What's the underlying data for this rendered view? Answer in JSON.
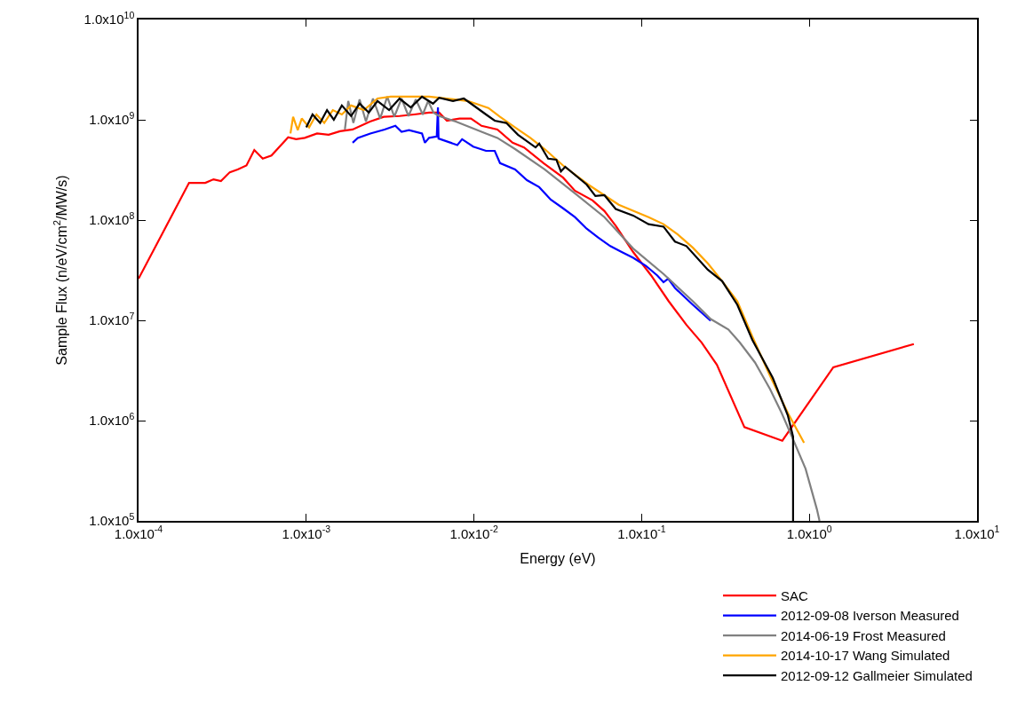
{
  "chart_data": {
    "type": "line",
    "xlabel": "Energy (eV)",
    "ylabel": "Sample Flux (n/eV/cm$^{2}$/MW/s)",
    "log": "xy",
    "legend": "bottom right",
    "marker": "none",
    "line_style": "solid",
    "xlim": [
      0.0001,
      10
    ],
    "ylim": [
      100000,
      10000000000
    ],
    "xticks": [
      {
        "value": 0.0001,
        "label": "1.0x10$^{-4}$"
      },
      {
        "value": 0.001,
        "label": "1.0x10$^{-3}$"
      },
      {
        "value": 0.01,
        "label": "1.0x10$^{-2}$"
      },
      {
        "value": 0.1,
        "label": "1.0x10$^{-1}$"
      },
      {
        "value": 1,
        "label": "1.0x10$^{0}$"
      },
      {
        "value": 10,
        "label": "1.0x10$^{1}$"
      }
    ],
    "yticks": [
      {
        "value": 100000,
        "label": "1.0x10$^{5}$"
      },
      {
        "value": 1000000,
        "label": "1.0x10$^{6}$"
      },
      {
        "value": 10000000,
        "label": "1.0x10$^{7}$"
      },
      {
        "value": 100000000,
        "label": "1.0x10$^{8}$"
      },
      {
        "value": 1000000000,
        "label": "1.0x10$^{9}$"
      },
      {
        "value": 10000000000,
        "label": "1.0x10$^{10}$"
      }
    ],
    "series": [
      {
        "name": "SAC",
        "color": "#ff0000",
        "x": [
          0.0001,
          0.0002,
          0.00025,
          0.00028,
          0.00031,
          0.00035,
          0.00039,
          0.00044,
          0.00049,
          0.00055,
          0.00062,
          0.00078,
          0.00087,
          0.00098,
          0.00116,
          0.00136,
          0.00159,
          0.00189,
          0.0024,
          0.0029,
          0.0036,
          0.0044,
          0.0054,
          0.0062,
          0.0069,
          0.0082,
          0.0096,
          0.0111,
          0.0138,
          0.017,
          0.0199,
          0.026,
          0.034,
          0.04,
          0.051,
          0.06,
          0.07,
          0.089,
          0.114,
          0.145,
          0.185,
          0.228,
          0.281,
          0.41,
          0.69,
          1.39,
          4.2
        ],
        "values": [
          26000000,
          235000000,
          235000000,
          255000000,
          245000000,
          300000000,
          320000000,
          350000000,
          500000000,
          410000000,
          440000000,
          670000000,
          640000000,
          660000000,
          730000000,
          710000000,
          770000000,
          800000000,
          960000000,
          1070000000,
          1090000000,
          1130000000,
          1180000000,
          1180000000,
          980000000,
          1030000000,
          1030000000,
          870000000,
          800000000,
          590000000,
          530000000,
          370000000,
          265000000,
          196000000,
          157000000,
          123000000,
          88000000,
          48000000,
          28000000,
          15500000,
          9000000,
          6000000,
          3600000,
          860000,
          630000,
          3400000,
          5800000
        ]
      },
      {
        "name": "2012-09-08 Iverson Measured",
        "color": "#0000ff",
        "x": [
          0.00189,
          0.00203,
          0.00241,
          0.00293,
          0.0034,
          0.0037,
          0.0041,
          0.0049,
          0.0051,
          0.0054,
          0.006,
          0.0061,
          0.00615,
          0.00796,
          0.0085,
          0.0099,
          0.0118,
          0.0133,
          0.0143,
          0.0176,
          0.0207,
          0.0245,
          0.0287,
          0.034,
          0.04,
          0.047,
          0.055,
          0.065,
          0.076,
          0.089,
          0.106,
          0.124,
          0.135,
          0.144,
          0.158,
          0.202,
          0.258
        ],
        "values": [
          590000000,
          660000000,
          730000000,
          800000000,
          870000000,
          760000000,
          790000000,
          730000000,
          590000000,
          660000000,
          680000000,
          1330000000,
          650000000,
          560000000,
          640000000,
          540000000,
          490000000,
          490000000,
          370000000,
          320000000,
          250000000,
          213000000,
          160000000,
          131000000,
          107000000,
          82000000,
          67000000,
          55000000,
          48000000,
          42000000,
          35000000,
          28000000,
          24000000,
          26000000,
          21000000,
          14300000,
          9900000
        ]
      },
      {
        "name": "2014-06-19 Frost Measured",
        "color": "#808080",
        "x": [
          0.0017,
          0.00178,
          0.00191,
          0.00208,
          0.00227,
          0.0025,
          0.00276,
          0.00304,
          0.00335,
          0.0037,
          0.00407,
          0.0045,
          0.00495,
          0.00533,
          0.00574,
          0.0062,
          0.0078,
          0.0118,
          0.0138,
          0.0176,
          0.0264,
          0.04,
          0.06,
          0.089,
          0.135,
          0.202,
          0.258,
          0.329,
          0.385,
          0.474,
          0.583,
          0.684,
          0.8,
          0.95,
          1.11,
          1.15
        ],
        "values": [
          800000000,
          1540000000,
          930000000,
          1600000000,
          960000000,
          1630000000,
          1030000000,
          1700000000,
          1070000000,
          1630000000,
          1090000000,
          1600000000,
          1130000000,
          1540000000,
          1180000000,
          1090000000,
          960000000,
          730000000,
          660000000,
          510000000,
          320000000,
          185000000,
          107000000,
          52000000,
          29000000,
          15500000,
          10300000,
          8100000,
          6000000,
          3800000,
          2060000,
          1190000,
          650000,
          330000,
          130000,
          100000
        ]
      },
      {
        "name": "2014-10-17 Wang Simulated",
        "color": "#ffa500",
        "x": [
          0.000805,
          0.000835,
          0.00089,
          0.00094,
          0.00104,
          0.00115,
          0.00128,
          0.00144,
          0.00163,
          0.00185,
          0.00221,
          0.00266,
          0.00319,
          0.0054,
          0.0092,
          0.0122,
          0.0143,
          0.0176,
          0.0217,
          0.0264,
          0.034,
          0.048,
          0.073,
          0.11,
          0.135,
          0.164,
          0.202,
          0.248,
          0.302,
          0.372,
          0.457,
          0.583,
          0.745,
          0.93
        ],
        "values": [
          730000000,
          1070000000,
          790000000,
          1030000000,
          840000000,
          1130000000,
          930000000,
          1250000000,
          1130000000,
          1390000000,
          1250000000,
          1630000000,
          1700000000,
          1700000000,
          1540000000,
          1310000000,
          1070000000,
          840000000,
          660000000,
          510000000,
          350000000,
          226000000,
          142000000,
          107000000,
          91000000,
          72000000,
          53000000,
          37000000,
          24600000,
          15500000,
          6900000,
          2800000,
          1190000,
          600000
        ]
      },
      {
        "name": "2012-09-12 Gallmeier Simulated",
        "color": "#000000",
        "x": [
          0.001,
          0.00109,
          0.00121,
          0.00133,
          0.00146,
          0.00163,
          0.00185,
          0.00208,
          0.00236,
          0.00266,
          0.00312,
          0.0036,
          0.0042,
          0.0049,
          0.0057,
          0.0062,
          0.0075,
          0.0087,
          0.0096,
          0.0118,
          0.0133,
          0.0156,
          0.0183,
          0.0233,
          0.0245,
          0.0277,
          0.031,
          0.033,
          0.035,
          0.047,
          0.053,
          0.06,
          0.07,
          0.089,
          0.11,
          0.135,
          0.158,
          0.185,
          0.248,
          0.302,
          0.372,
          0.457,
          0.605,
          0.745,
          0.8,
          0.8
        ],
        "values": [
          840000000,
          1130000000,
          930000000,
          1250000000,
          1000000000,
          1390000000,
          1090000000,
          1450000000,
          1180000000,
          1540000000,
          1250000000,
          1630000000,
          1330000000,
          1700000000,
          1450000000,
          1660000000,
          1540000000,
          1630000000,
          1450000000,
          1130000000,
          980000000,
          930000000,
          710000000,
          530000000,
          580000000,
          410000000,
          400000000,
          305000000,
          340000000,
          226000000,
          174000000,
          177000000,
          129000000,
          111000000,
          91000000,
          86000000,
          61000000,
          55000000,
          32000000,
          24600000,
          14300000,
          6400000,
          2670000,
          1120000,
          690000,
          100000
        ]
      }
    ]
  }
}
